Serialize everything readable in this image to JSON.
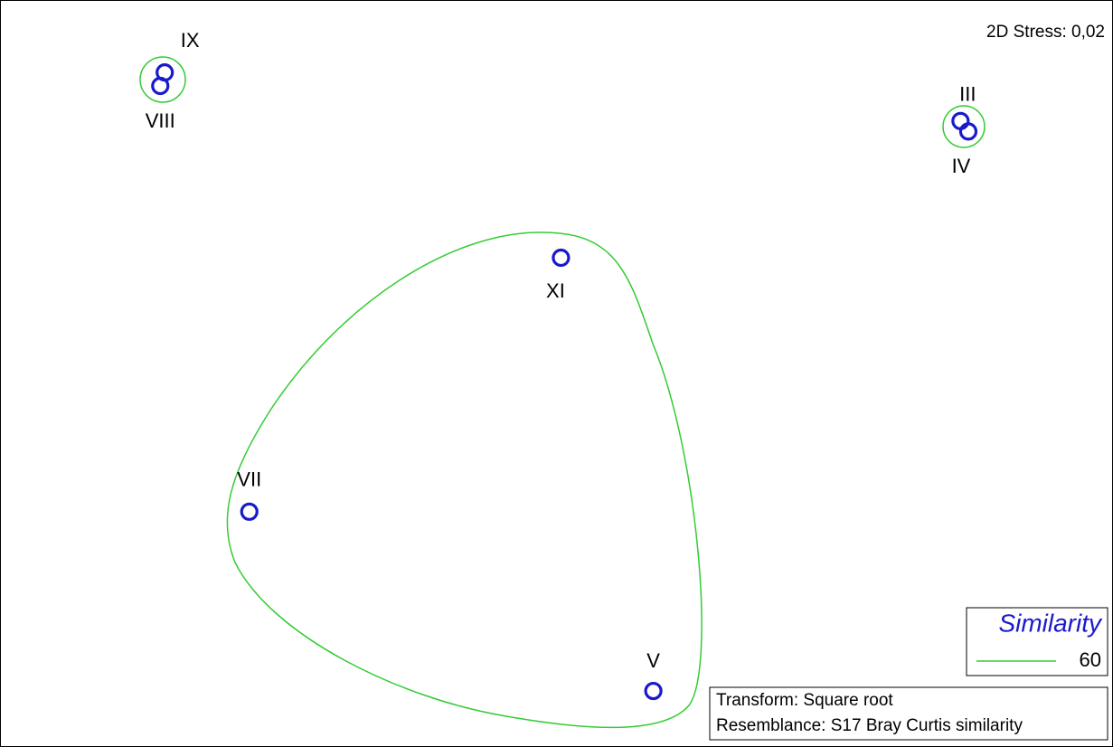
{
  "chart_data": {
    "type": "scatter",
    "annotation": "2D Stress: 0,02",
    "labels": [
      "IX",
      "VIII",
      "III",
      "IV",
      "XI",
      "VII",
      "V"
    ],
    "x": [
      14.8,
      14.4,
      86.3,
      87.0,
      50.4,
      22.4,
      58.7
    ],
    "y": [
      90.3,
      88.5,
      83.8,
      82.4,
      65.5,
      31.5,
      7.5
    ],
    "color": "#1a1acc",
    "xlim": [
      0,
      100
    ],
    "ylim": [
      0,
      100
    ],
    "legend": {
      "title": "Similarity",
      "levels": [
        60
      ],
      "color": "#33cc33"
    },
    "notes": [
      "Transform: Square root",
      "Resemblance: S17 Bray Curtis similarity"
    ]
  }
}
